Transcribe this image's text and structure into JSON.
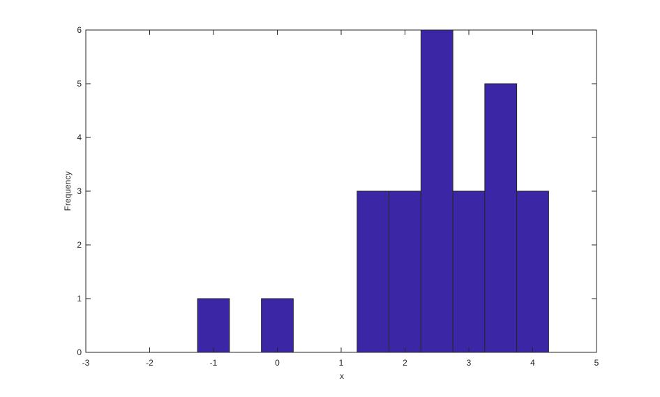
{
  "chart_data": {
    "type": "histogram",
    "bins": [
      -2.25,
      -1.75,
      -1.25,
      -0.75,
      -0.25,
      0.25,
      0.75,
      1.25,
      1.75,
      2.25,
      2.75,
      3.25,
      3.75,
      4.25,
      4.75
    ],
    "values": [
      0,
      0,
      1,
      0,
      1,
      0,
      0,
      3,
      3,
      6,
      3,
      5,
      3,
      0
    ],
    "color": "#3b27a6",
    "xlabel": "x",
    "ylabel": "Frequency",
    "xlim": [
      -3,
      5
    ],
    "xticks": [
      -3,
      -2,
      -1,
      0,
      1,
      2,
      3,
      4,
      5
    ],
    "ylim": [
      0,
      6
    ],
    "yticks": [
      0,
      1,
      2,
      3,
      4,
      5,
      6
    ]
  }
}
